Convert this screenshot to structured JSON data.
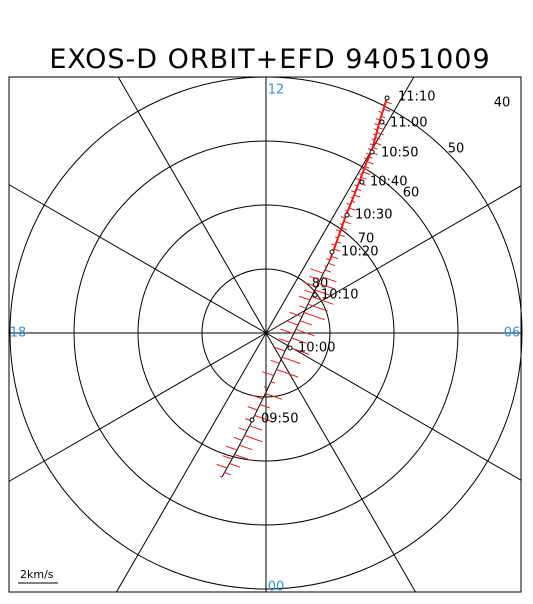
{
  "title": "EXOS-D ORBIT+EFD 94051009",
  "local_time_labels": [
    "12",
    "18",
    "06",
    "00"
  ],
  "latitude_labels": [
    "40",
    "50",
    "60",
    "70",
    "80"
  ],
  "time_labels": [
    "11:10",
    "11:00",
    "10:50",
    "10:40",
    "10:30",
    "10:20",
    "10:10",
    "10:00",
    "09:50"
  ],
  "scale_label": "2km/s"
}
